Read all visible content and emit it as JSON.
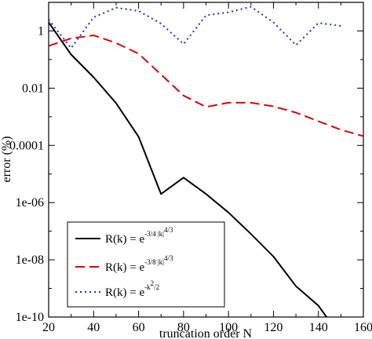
{
  "chart_data": {
    "type": "line",
    "title": "",
    "xlabel": "truncation order N",
    "ylabel": "error (%)",
    "x_scale": "linear",
    "y_scale": "log",
    "xlim": [
      20,
      160
    ],
    "ylim": [
      1e-10,
      10
    ],
    "x_ticks": [
      20,
      40,
      60,
      80,
      100,
      120,
      140,
      160
    ],
    "x_tick_labels": [
      "20",
      "40",
      "60",
      "80",
      "100",
      "120",
      "140",
      "160"
    ],
    "y_ticks": [
      1e-10,
      1e-08,
      1e-06,
      0.0001,
      0.01,
      1
    ],
    "y_tick_labels": [
      "1e-10",
      "1e-08",
      "1e-06",
      "0.0001",
      "0.01",
      "1"
    ],
    "grid": false,
    "legend_position": "bottom-left",
    "series": [
      {
        "legend_base": "R(k) = e",
        "legend_exp": "-3/4 |k|",
        "legend_exp2": "4/3",
        "color": "#000000",
        "style": "solid",
        "x": [
          20,
          30,
          40,
          50,
          60,
          70,
          80,
          90,
          100,
          110,
          120,
          130,
          140,
          150,
          160
        ],
        "y": [
          2.0,
          0.15,
          0.024,
          0.003,
          0.0002,
          2e-06,
          7.5e-06,
          2e-06,
          4.5e-07,
          8e-08,
          1.3e-08,
          1.2e-09,
          2.5e-10,
          2e-11,
          3.5e-11
        ]
      },
      {
        "legend_base": "R(k) = e",
        "legend_exp": "-3/8 |k|",
        "legend_exp2": "4/3",
        "color": "#e00000",
        "style": "dashed",
        "x": [
          20,
          30,
          40,
          50,
          60,
          70,
          80,
          90,
          100,
          110,
          120,
          130,
          140,
          150,
          160
        ],
        "y": [
          0.3,
          0.55,
          0.7,
          0.38,
          0.16,
          0.03,
          0.0055,
          0.0022,
          0.0031,
          0.0031,
          0.0023,
          0.0014,
          0.0007,
          0.00035,
          0.00021
        ]
      },
      {
        "legend_base": "R(k) = e",
        "legend_exp": "-k",
        "legend_exp_sup": "2",
        "legend_exp_tail": "/2",
        "color": "#2030d0",
        "style": "dotted",
        "x": [
          20,
          30,
          40,
          50,
          60,
          70,
          80,
          90,
          100,
          110,
          120,
          130,
          140,
          150
        ],
        "y": [
          2.5,
          0.25,
          3.0,
          6.5,
          5.0,
          1.8,
          0.35,
          3.5,
          4.5,
          7.0,
          2.0,
          0.32,
          1.9,
          1.5
        ]
      }
    ]
  }
}
